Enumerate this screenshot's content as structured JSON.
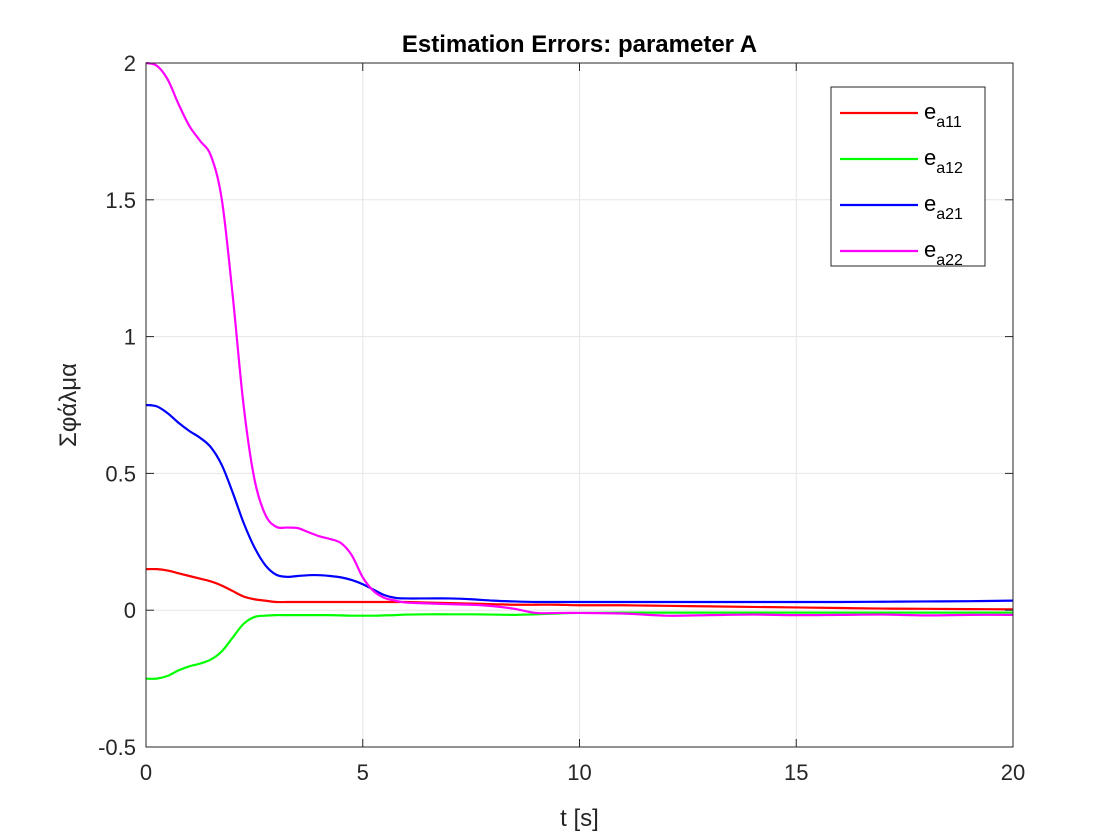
{
  "chart_data": {
    "type": "line",
    "title": "Estimation Errors: parameter A",
    "xlabel": "t [s]",
    "ylabel": "Σφάλμα",
    "xlim": [
      0,
      20
    ],
    "ylim": [
      -0.5,
      2
    ],
    "xticks": [
      0,
      5,
      10,
      15,
      20
    ],
    "xtick_labels": [
      "0",
      "5",
      "10",
      "15",
      "20"
    ],
    "yticks": [
      -0.5,
      0,
      0.5,
      1,
      1.5,
      2
    ],
    "ytick_labels": [
      "-0.5",
      "0",
      "0.5",
      "1",
      "1.5",
      "2"
    ],
    "grid": true,
    "legend_position": "top-right",
    "x": [
      0,
      0.25,
      0.5,
      0.75,
      1,
      1.25,
      1.5,
      1.75,
      2,
      2.25,
      2.5,
      2.75,
      3,
      3.25,
      3.5,
      3.75,
      4,
      4.25,
      4.5,
      4.75,
      5,
      5.25,
      5.5,
      5.75,
      6,
      6.5,
      7,
      7.5,
      8,
      8.5,
      9,
      9.5,
      10,
      11,
      12,
      13,
      14,
      15,
      16,
      17,
      18,
      19,
      20
    ],
    "series": [
      {
        "name": "e",
        "name_sub": "a11",
        "color": "#ff0000",
        "values": [
          0.15,
          0.15,
          0.145,
          0.135,
          0.125,
          0.115,
          0.105,
          0.09,
          0.07,
          0.05,
          0.04,
          0.035,
          0.03,
          0.03,
          0.03,
          0.03,
          0.03,
          0.03,
          0.03,
          0.03,
          0.03,
          0.03,
          0.03,
          0.03,
          0.03,
          0.028,
          0.026,
          0.024,
          0.022,
          0.02,
          0.02,
          0.02,
          0.018,
          0.018,
          0.016,
          0.014,
          0.012,
          0.01,
          0.008,
          0.006,
          0.005,
          0.004,
          0.003
        ]
      },
      {
        "name": "e",
        "name_sub": "a12",
        "color": "#00ff00",
        "values": [
          -0.25,
          -0.25,
          -0.24,
          -0.22,
          -0.205,
          -0.195,
          -0.18,
          -0.15,
          -0.1,
          -0.05,
          -0.025,
          -0.02,
          -0.018,
          -0.018,
          -0.018,
          -0.018,
          -0.018,
          -0.018,
          -0.019,
          -0.02,
          -0.02,
          -0.02,
          -0.019,
          -0.018,
          -0.016,
          -0.015,
          -0.015,
          -0.015,
          -0.016,
          -0.017,
          -0.015,
          -0.012,
          -0.01,
          -0.009,
          -0.009,
          -0.009,
          -0.009,
          -0.009,
          -0.009,
          -0.009,
          -0.009,
          -0.009,
          -0.009
        ]
      },
      {
        "name": "e",
        "name_sub": "a21",
        "color": "#0000ff",
        "values": [
          0.75,
          0.745,
          0.72,
          0.685,
          0.655,
          0.63,
          0.595,
          0.53,
          0.43,
          0.32,
          0.23,
          0.165,
          0.13,
          0.122,
          0.125,
          0.128,
          0.128,
          0.125,
          0.12,
          0.11,
          0.095,
          0.075,
          0.055,
          0.045,
          0.043,
          0.043,
          0.043,
          0.04,
          0.035,
          0.032,
          0.03,
          0.03,
          0.03,
          0.03,
          0.03,
          0.03,
          0.03,
          0.03,
          0.03,
          0.031,
          0.032,
          0.033,
          0.035
        ]
      },
      {
        "name": "e",
        "name_sub": "a22",
        "color": "#ff00ff",
        "values": [
          2,
          1.99,
          1.94,
          1.85,
          1.77,
          1.715,
          1.66,
          1.5,
          1.15,
          0.75,
          0.48,
          0.35,
          0.305,
          0.302,
          0.3,
          0.285,
          0.27,
          0.26,
          0.245,
          0.2,
          0.12,
          0.07,
          0.045,
          0.035,
          0.028,
          0.025,
          0.022,
          0.02,
          0.015,
          0.005,
          -0.01,
          -0.01,
          -0.01,
          -0.012,
          -0.02,
          -0.018,
          -0.016,
          -0.018,
          -0.017,
          -0.016,
          -0.019,
          -0.017,
          -0.017
        ]
      }
    ]
  }
}
